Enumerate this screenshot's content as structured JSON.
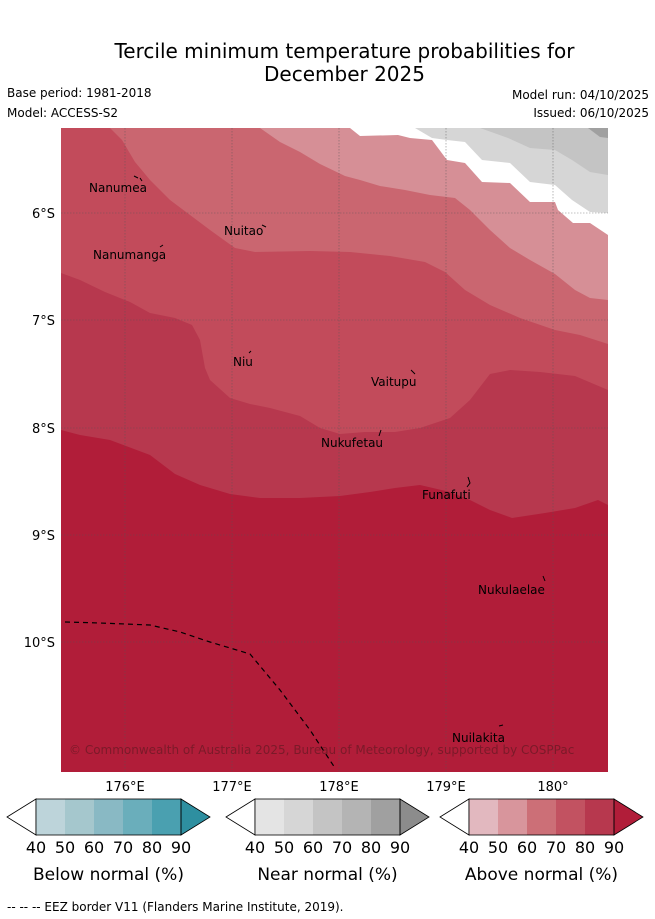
{
  "title_line1": "Tercile minimum temperature probabilities for",
  "title_line2": "December 2025",
  "base_period": "Base period: 1981-2018",
  "model": "Model: ACCESS-S2",
  "model_run": "Model run: 04/10/2025",
  "issued": "Issued: 06/10/2025",
  "lon_ticks": [
    "176°E",
    "177°E",
    "178°E",
    "179°E",
    "180°"
  ],
  "lat_ticks": [
    "6°S",
    "7°S",
    "8°S",
    "9°S",
    "10°S"
  ],
  "places": [
    "Nanumea",
    "Nuitao",
    "Nanumanga",
    "Niu",
    "Vaitupu",
    "Nukufetau",
    "Funafuti",
    "Nukulaelae",
    "Nuilakita"
  ],
  "copyright": "© Commonwealth of Australia 2025, Bureau of Meteorology, supported by COSPPac",
  "colorbars": [
    {
      "label": "Below normal (%)",
      "ticks": [
        "40",
        "50",
        "60",
        "70",
        "80",
        "90"
      ],
      "colors": [
        "#ffffff",
        "#bdd4da",
        "#a5c7cd",
        "#89b9c4",
        "#6aaebb",
        "#4aa0b0",
        "#2e8fa0"
      ]
    },
    {
      "label": "Near normal (%)",
      "ticks": [
        "40",
        "50",
        "60",
        "70",
        "80",
        "90"
      ],
      "colors": [
        "#ffffff",
        "#e4e4e4",
        "#d6d6d6",
        "#c4c4c4",
        "#b4b4b4",
        "#a0a0a0",
        "#8c8c8c"
      ]
    },
    {
      "label": "Above normal (%)",
      "ticks": [
        "40",
        "50",
        "60",
        "70",
        "80",
        "90"
      ],
      "colors": [
        "#ffffff",
        "#e2b8bf",
        "#d8959c",
        "#cc6f77",
        "#c25261",
        "#b7384e",
        "#b11d39"
      ]
    }
  ],
  "footer": "-- -- -- EEZ border V11 (Flanders Marine Institute, 2019)."
}
